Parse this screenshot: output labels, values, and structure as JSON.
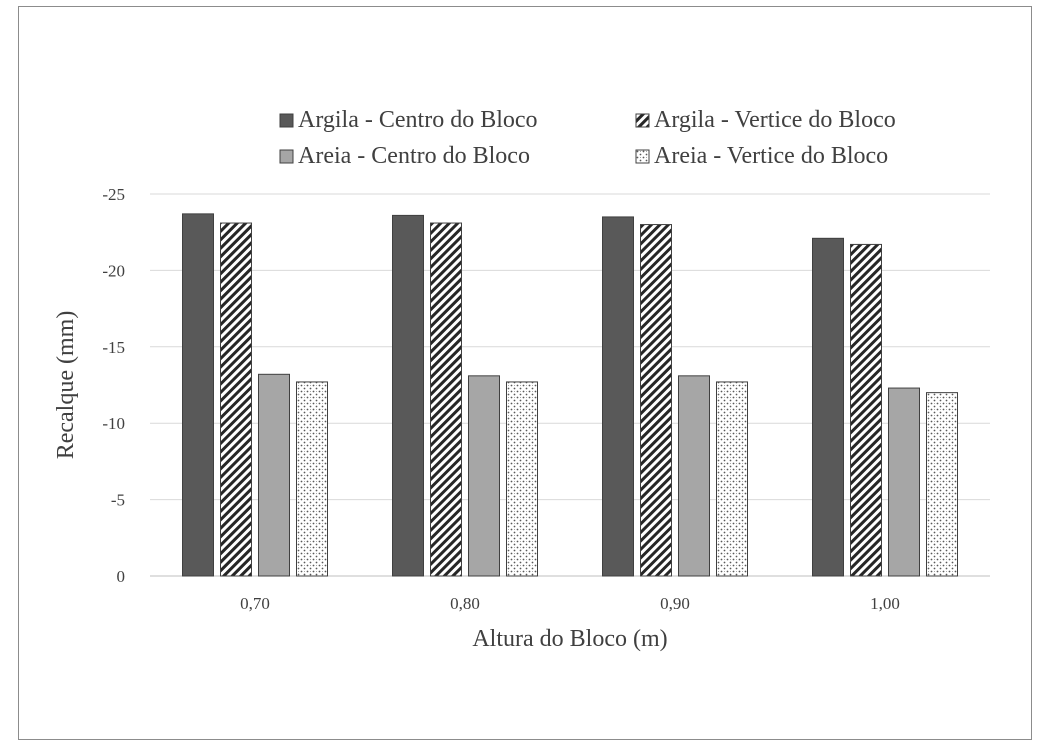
{
  "chart_data": {
    "type": "bar",
    "xlabel": "Altura do Bloco (m)",
    "ylabel": "Recalque (mm)",
    "categories": [
      "0,70",
      "0,80",
      "0,90",
      "1,00"
    ],
    "y_ticks": [
      "0",
      "-5",
      "-10",
      "-15",
      "-20",
      "-25"
    ],
    "ylim": [
      0,
      -25
    ],
    "y_axis_inverted": true,
    "grid": true,
    "legend_position": "top",
    "series": [
      {
        "name": "Argila - Centro do Bloco",
        "values": [
          -23.7,
          -23.6,
          -23.5,
          -22.1
        ],
        "fill": "solid",
        "color": "#595959"
      },
      {
        "name": "Argila - Vertice do Bloco",
        "values": [
          -23.1,
          -23.1,
          -23.0,
          -21.7
        ],
        "fill": "diagonal-hatch",
        "color": "#262626"
      },
      {
        "name": "Areia - Centro do Bloco",
        "values": [
          -13.2,
          -13.1,
          -13.1,
          -12.3
        ],
        "fill": "solid",
        "color": "#a6a6a6"
      },
      {
        "name": "Areia - Vertice do Bloco",
        "values": [
          -12.7,
          -12.7,
          -12.7,
          -12.0
        ],
        "fill": "dotted",
        "color": "#7f7f7f"
      }
    ]
  }
}
